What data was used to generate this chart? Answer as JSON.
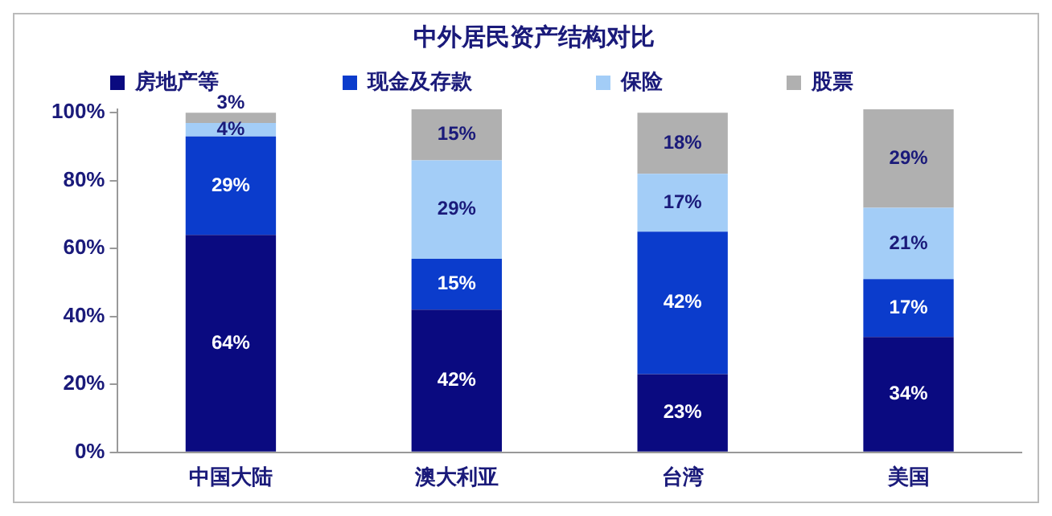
{
  "chart_data": {
    "type": "bar",
    "title": "中外居民资产结构对比",
    "categories": [
      "中国大陆",
      "澳大利亚",
      "台湾",
      "美国"
    ],
    "stacked": true,
    "legend": "top",
    "grid": false,
    "series": [
      {
        "name": "房地产等",
        "color": "#0a0a80",
        "values": [
          64,
          42,
          23,
          34
        ],
        "value_labels": [
          "64%",
          "42%",
          "23%",
          "34%"
        ]
      },
      {
        "name": "现金及存款",
        "color": "#0b3ccc",
        "values": [
          29,
          15,
          42,
          17
        ],
        "value_labels": [
          "29%",
          "15%",
          "42%",
          "17%"
        ]
      },
      {
        "name": "保险",
        "color": "#a3cdf7",
        "values": [
          4,
          29,
          17,
          21
        ],
        "value_labels": [
          "4%",
          "29%",
          "17%",
          "21%"
        ]
      },
      {
        "name": "股票",
        "color": "#b0b0b0",
        "values": [
          3,
          15,
          18,
          29
        ],
        "value_labels": [
          "3%",
          "15%",
          "18%",
          "29%"
        ]
      }
    ],
    "ylim": [
      0,
      101
    ],
    "yticks": [
      {
        "value": 0,
        "label": "0%"
      },
      {
        "value": 20,
        "label": "20%"
      },
      {
        "value": 40,
        "label": "40%"
      },
      {
        "value": 60,
        "label": "60%"
      },
      {
        "value": 80,
        "label": "80%"
      },
      {
        "value": 100,
        "label": "100%"
      }
    ]
  }
}
